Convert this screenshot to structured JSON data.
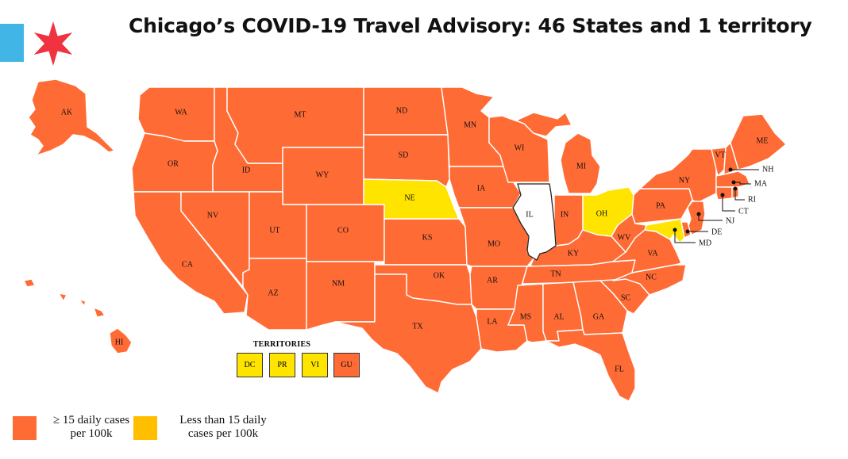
{
  "title": "Chicago’s COVID-19 Travel Advisory: 46 States and 1 territory",
  "colors": {
    "high": "#ff6b35",
    "low": "#ffe400",
    "illinois": "#ffffff",
    "legend_low": "#ffbf00",
    "flag_blue": "#41b6e6",
    "flag_star": "#ef3340"
  },
  "states": {
    "AK": "AK",
    "HI": "HI",
    "WA": "WA",
    "OR": "OR",
    "CA": "CA",
    "ID": "ID",
    "NV": "NV",
    "MT": "MT",
    "WY": "WY",
    "UT": "UT",
    "AZ": "AZ",
    "CO": "CO",
    "NM": "NM",
    "ND": "ND",
    "SD": "SD",
    "NE": "NE",
    "KS": "KS",
    "OK": "OK",
    "TX": "TX",
    "MN": "MN",
    "IA": "IA",
    "MO": "MO",
    "AR": "AR",
    "LA": "LA",
    "WI": "WI",
    "IL": "IL",
    "MI": "MI",
    "IN": "IN",
    "OH": "OH",
    "KY": "KY",
    "TN": "TN",
    "MS": "MS",
    "AL": "AL",
    "GA": "GA",
    "FL": "FL",
    "SC": "SC",
    "NC": "NC",
    "VA": "VA",
    "WV": "WV",
    "PA": "PA",
    "NY": "NY",
    "VT": "VT",
    "ME": "ME",
    "NH": "NH",
    "MA": "MA",
    "RI": "RI",
    "CT": "CT",
    "NJ": "NJ",
    "DE": "DE",
    "MD": "MD"
  },
  "territories": {
    "title": "TERRITORIES",
    "items": [
      "DC",
      "PR",
      "VI",
      "GU"
    ]
  },
  "legend": {
    "high_line1": "≥ 15 daily cases",
    "high_line2": "per 100k",
    "low_line1": "Less than 15 daily",
    "low_line2": "cases per 100k"
  }
}
